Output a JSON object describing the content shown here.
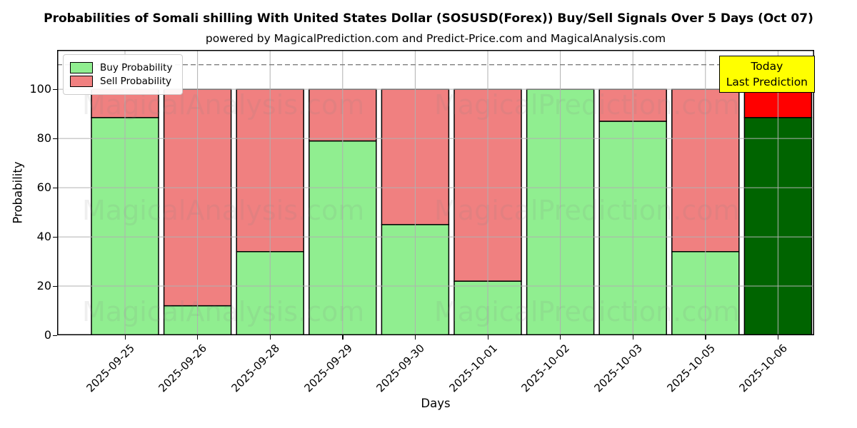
{
  "header": {
    "title": "Probabilities of Somali shilling With United States Dollar (SOSUSD(Forex)) Buy/Sell Signals Over 5 Days (Oct 07)",
    "subtitle": "powered by MagicalPrediction.com and Predict-Price.com and MagicalAnalysis.com"
  },
  "axes": {
    "xlabel": "Days",
    "ylabel": "Probability"
  },
  "legend": {
    "items": [
      {
        "label": "Buy Probability",
        "color": "#90EE90"
      },
      {
        "label": "Sell Probability",
        "color": "#F08080"
      }
    ]
  },
  "annotation": {
    "line1": "Today",
    "line2": "Last Prediction",
    "bg": "#ffff00",
    "border": "#000000"
  },
  "watermark_texts": [
    "MagicalAnalysis.com",
    "MagicalPrediction.com"
  ],
  "chart_data": {
    "type": "bar",
    "stacked": true,
    "title": "Probabilities of Somali shilling With United States Dollar (SOSUSD(Forex)) Buy/Sell Signals Over 5 Days (Oct 07)",
    "xlabel": "Days",
    "ylabel": "Probability",
    "categories": [
      "2025-09-25",
      "2025-09-26",
      "2025-09-28",
      "2025-09-29",
      "2025-09-30",
      "2025-10-01",
      "2025-10-02",
      "2025-10-03",
      "2025-10-05",
      "2025-10-06"
    ],
    "series": [
      {
        "name": "Buy Probability",
        "color": "#90EE90",
        "values": [
          88.5,
          12,
          34,
          79,
          45,
          22,
          100,
          87,
          34,
          88.5
        ]
      },
      {
        "name": "Sell Probability",
        "color": "#F08080",
        "values": [
          11.5,
          88,
          66,
          21,
          55,
          78,
          0,
          13,
          66,
          11.5
        ]
      }
    ],
    "today_bar": {
      "category": "2025-10-06",
      "buy_color": "#006400",
      "sell_color": "#FF0000"
    },
    "yticks": [
      0,
      20,
      40,
      60,
      80,
      100
    ],
    "ylim": [
      0,
      116
    ],
    "reference_line": {
      "y": 110,
      "style": "dashed",
      "color": "#7f7f7f"
    },
    "grid": true,
    "grid_color": "#b0b0b0",
    "bar_edge_color": "#000000",
    "legend_position": "upper left"
  }
}
